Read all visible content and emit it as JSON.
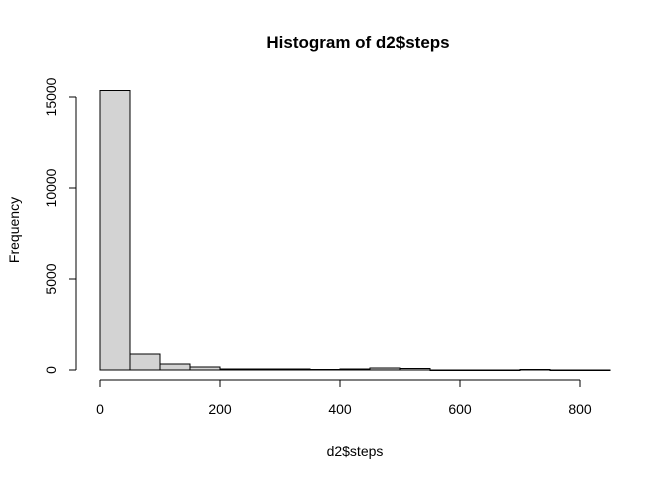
{
  "chart_data": {
    "type": "bar",
    "title": "Histogram of d2$steps",
    "xlabel": "d2$steps",
    "ylabel": "Frequency",
    "bar_color": "#d3d3d3",
    "edge_color": "#000000",
    "xlim": [
      0,
      850
    ],
    "ylim": [
      0,
      15500
    ],
    "x_ticks": [
      0,
      200,
      400,
      600,
      800
    ],
    "x_tick_labels": [
      "0",
      "200",
      "400",
      "600",
      "800"
    ],
    "y_ticks": [
      0,
      5000,
      10000,
      15000
    ],
    "y_tick_labels": [
      "0",
      "5000",
      "10000",
      "15000"
    ],
    "bins": [
      {
        "start": 0,
        "end": 50,
        "count": 15350
      },
      {
        "start": 50,
        "end": 100,
        "count": 880
      },
      {
        "start": 100,
        "end": 150,
        "count": 330
      },
      {
        "start": 150,
        "end": 200,
        "count": 170
      },
      {
        "start": 200,
        "end": 250,
        "count": 60
      },
      {
        "start": 250,
        "end": 300,
        "count": 50
      },
      {
        "start": 300,
        "end": 350,
        "count": 45
      },
      {
        "start": 350,
        "end": 400,
        "count": 40
      },
      {
        "start": 400,
        "end": 450,
        "count": 50
      },
      {
        "start": 450,
        "end": 500,
        "count": 100
      },
      {
        "start": 500,
        "end": 550,
        "count": 90
      },
      {
        "start": 550,
        "end": 600,
        "count": 5
      },
      {
        "start": 600,
        "end": 650,
        "count": 5
      },
      {
        "start": 650,
        "end": 700,
        "count": 5
      },
      {
        "start": 700,
        "end": 750,
        "count": 40
      },
      {
        "start": 750,
        "end": 800,
        "count": 5
      },
      {
        "start": 800,
        "end": 850,
        "count": 5
      }
    ]
  }
}
